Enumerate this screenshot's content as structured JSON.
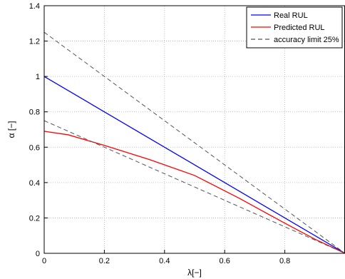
{
  "chart_data": {
    "type": "line",
    "title": "",
    "xlabel": "λ[−]",
    "ylabel": "α [−]",
    "xlim": [
      0,
      1
    ],
    "ylim": [
      0,
      1.4
    ],
    "x_ticks": [
      0,
      0.2,
      0.4,
      0.6,
      0.8
    ],
    "x_tick_labels": [
      "0",
      "0.2",
      "0.4",
      "0.6",
      "0.8"
    ],
    "y_ticks": [
      0,
      0.2,
      0.4,
      0.6,
      0.8,
      1,
      1.2,
      1.4
    ],
    "y_tick_labels": [
      "0",
      "0.2",
      "0.4",
      "0.6",
      "0.8",
      "1",
      "1.2",
      "1.4"
    ],
    "grid": true,
    "legend": "top-right",
    "series": [
      {
        "name": "Real RUL",
        "color": "#0000ff",
        "dash": "solid",
        "x": [
          0,
          1
        ],
        "y": [
          1.0,
          0.0
        ]
      },
      {
        "name": "Predicted RUL",
        "color": "#ff0000",
        "dash": "solid",
        "x": [
          0,
          0.08,
          0.2,
          0.35,
          0.5,
          0.65,
          0.8,
          0.9,
          1.0
        ],
        "y": [
          0.69,
          0.67,
          0.61,
          0.53,
          0.44,
          0.31,
          0.17,
          0.08,
          0.0
        ]
      },
      {
        "name": "accuracy limit 25%",
        "color": "#555555",
        "dash": "dashed",
        "x": [
          0,
          1
        ],
        "y": [
          1.25,
          0.0
        ]
      },
      {
        "name": "",
        "color": "#555555",
        "dash": "dashed",
        "x": [
          0,
          1
        ],
        "y": [
          0.75,
          0.0
        ]
      }
    ]
  }
}
